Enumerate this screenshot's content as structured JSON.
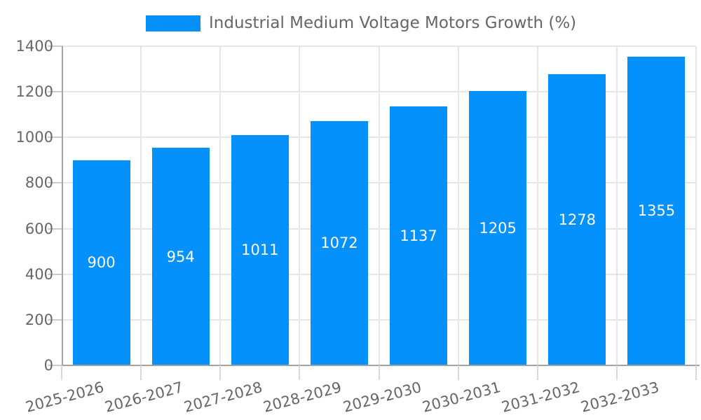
{
  "legend": {
    "label": "Industrial Medium Voltage Motors Growth (%)"
  },
  "colors": {
    "bar": "#0591FB",
    "text": "#666666",
    "grid": "#e6e6e6",
    "tick": "#cccccc",
    "axis": "#a3a3a3",
    "bar_label": "#ffffff",
    "background": "#ffffff"
  },
  "chart_data": {
    "type": "bar",
    "title": "",
    "xlabel": "",
    "ylabel": "",
    "categories": [
      "2025-2026",
      "2026-2027",
      "2027-2028",
      "2028-2029",
      "2029-2030",
      "2030-2031",
      "2031-2032",
      "2032-2033"
    ],
    "series": [
      {
        "name": "Industrial Medium Voltage Motors Growth (%)",
        "values": [
          900,
          954,
          1011,
          1072,
          1137,
          1205,
          1278,
          1355
        ]
      }
    ],
    "value_labels": [
      "900",
      "954",
      "1011",
      "1072",
      "1137",
      "1205",
      "1278",
      "1355"
    ],
    "ylim": [
      0,
      1400
    ],
    "yticks": [
      0,
      200,
      400,
      600,
      800,
      1000,
      1200,
      1400
    ],
    "ytick_labels": [
      "0",
      "200",
      "400",
      "600",
      "800",
      "1000",
      "1200",
      "1400"
    ],
    "grid": "both",
    "legend_position": "top-center",
    "x_label_rotation_deg": -15,
    "value_label_position": "center-of-bar"
  }
}
